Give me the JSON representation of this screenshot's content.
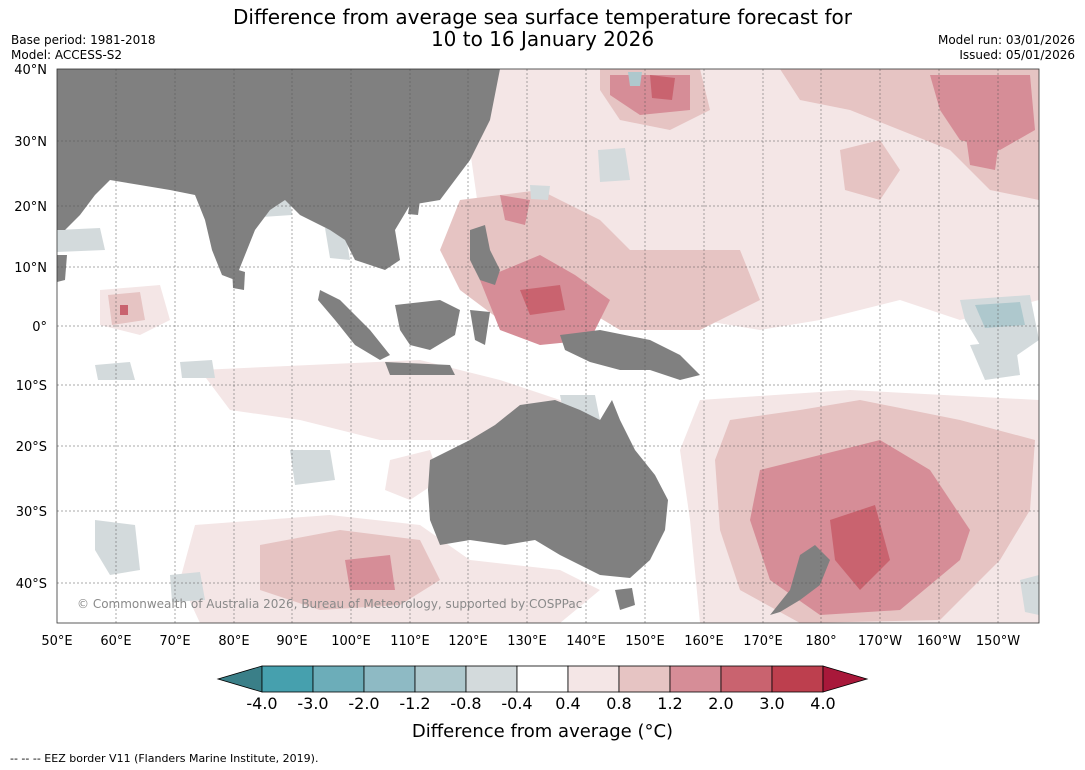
{
  "title": {
    "line1": "Difference from average sea surface temperature forecast for",
    "line2": "10 to 16 January 2026"
  },
  "meta": {
    "base_period": "Base period: 1981-2018",
    "model": "Model: ACCESS-S2",
    "model_run": "Model run: 03/01/2026",
    "issued": "Issued: 05/01/2026"
  },
  "copyright": "© Commonwealth of Australia 2026, Bureau of Meteorology, supported by COSPPac",
  "footer_note": "-- -- -- EEZ border V11 (Flanders Marine Institute, 2019).",
  "map": {
    "lat_labels": [
      "40°N",
      "30°N",
      "20°N",
      "10°N",
      "0°",
      "10°S",
      "20°S",
      "30°S",
      "40°S"
    ],
    "lon_labels": [
      "50°E",
      "60°E",
      "70°E",
      "80°E",
      "90°E",
      "100°E",
      "110°E",
      "120°E",
      "130°E",
      "140°E",
      "150°E",
      "160°E",
      "170°E",
      "180°",
      "170°W",
      "160°W",
      "150°W"
    ],
    "colors": {
      "land": "#808080",
      "ocean_neutral": "#ffffff",
      "grid": "#555555"
    }
  },
  "colorbar": {
    "title": "Difference from average (°C)",
    "labels": [
      "-4.0",
      "-3.0",
      "-2.0",
      "-1.2",
      "-0.8",
      "-0.4",
      "0.4",
      "0.8",
      "1.2",
      "2.0",
      "3.0",
      "4.0"
    ],
    "low_extend_color": "#3a7f88",
    "high_extend_color": "#a8183a",
    "segment_colors": [
      "#46a0ae",
      "#6cadb9",
      "#8ebac4",
      "#aec8cd",
      "#d3dadc",
      "#ffffff",
      "#f4e6e6",
      "#e6c4c3",
      "#d68d97",
      "#c9636f",
      "#bd3f4e"
    ]
  }
}
